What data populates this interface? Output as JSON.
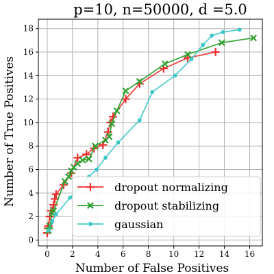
{
  "chart_data": {
    "type": "line",
    "title": "p=10, n=50000, d =5.0",
    "xlabel": "Number of False Positives",
    "ylabel": "Number of True Positives",
    "xlim": [
      -0.7,
      17.0
    ],
    "ylim": [
      -0.5,
      18.8
    ],
    "xticks": [
      0,
      2,
      4,
      6,
      8,
      10,
      12,
      14,
      16
    ],
    "yticks": [
      0,
      2,
      4,
      6,
      8,
      10,
      12,
      14,
      16,
      18
    ],
    "grid": true,
    "legend_position": "lower-right",
    "series": [
      {
        "name": "dropout normalizing",
        "color": "#f03030",
        "marker": "plus",
        "x": [
          0.0,
          0.05,
          0.1,
          0.2,
          0.3,
          0.5,
          0.6,
          0.7,
          1.3,
          1.9,
          2.4,
          3.1,
          3.7,
          4.4,
          4.8,
          5.0,
          5.2,
          6.2,
          7.3,
          9.2,
          11.1,
          13.3
        ],
        "y": [
          0.6,
          1.0,
          1.2,
          2.0,
          2.5,
          3.0,
          3.5,
          3.9,
          4.7,
          5.7,
          7.0,
          7.3,
          7.8,
          8.1,
          9.2,
          10.0,
          10.5,
          12.0,
          13.3,
          14.6,
          15.5,
          16.0
        ]
      },
      {
        "name": "dropout stabilizing",
        "color": "#30a030",
        "marker": "x",
        "x": [
          0.1,
          0.2,
          0.4,
          0.5,
          1.4,
          1.7,
          1.9,
          2.1,
          2.4,
          2.8,
          3.3,
          3.8,
          4.6,
          4.9,
          5.1,
          5.5,
          6.2,
          7.3,
          9.3,
          11.1,
          13.8,
          16.3
        ],
        "y": [
          0.8,
          1.2,
          2.3,
          2.5,
          5.0,
          5.4,
          5.9,
          6.2,
          6.5,
          6.8,
          6.9,
          8.0,
          8.5,
          8.8,
          9.9,
          11.0,
          12.7,
          13.5,
          15.0,
          15.8,
          16.8,
          17.2
        ]
      },
      {
        "name": "gaussian",
        "color": "#40c8c8",
        "marker": "circle",
        "x": [
          0.1,
          0.4,
          0.7,
          1.8,
          3.3,
          3.9,
          4.6,
          5.6,
          7.3,
          8.3,
          10.1,
          11.4,
          12.3,
          13.0,
          13.9,
          15.2
        ],
        "y": [
          0.8,
          1.6,
          2.2,
          3.6,
          5.4,
          6.0,
          7.0,
          8.3,
          10.2,
          12.6,
          14.0,
          15.4,
          16.6,
          17.4,
          17.7,
          17.9
        ]
      }
    ]
  }
}
